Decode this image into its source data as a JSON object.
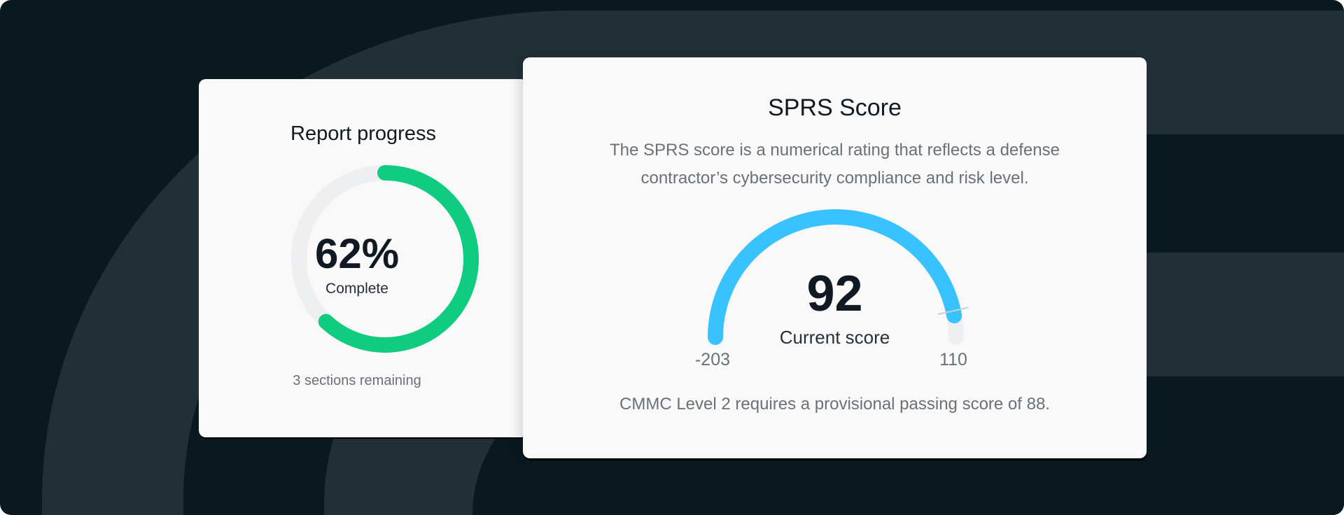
{
  "colors": {
    "background": "#0a1820",
    "background_band": "#222f37",
    "card": "#f9f9f9",
    "progress": "#10cc80",
    "gauge": "#38c3fe",
    "track": "#eeeff1"
  },
  "report_progress": {
    "title": "Report progress",
    "percent_label": "62%",
    "percent": 62,
    "status": "Complete",
    "remaining": "3 sections remaining"
  },
  "sprs": {
    "title": "SPRS Score",
    "description_line1": "The SPRS score is a numerical rating that reflects a defense",
    "description_line2": "contractor’s cybersecurity compliance and risk level.",
    "score": 92,
    "score_label": "92",
    "score_caption": "Current score",
    "min": -203,
    "min_label": "-203",
    "max": 110,
    "max_label": "110",
    "passing_score": 88,
    "footnote": "CMMC Level 2 requires a provisional passing score of 88."
  }
}
